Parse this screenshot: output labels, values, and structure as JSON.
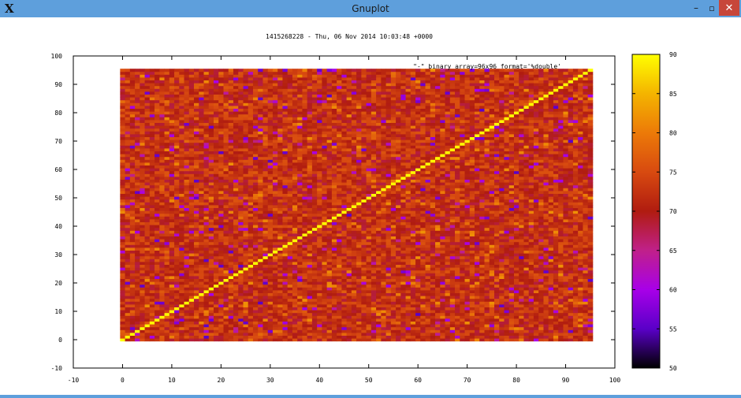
{
  "window": {
    "title": "Gnuplot",
    "logo_icon": "x-window-logo",
    "minimize_glyph": "–",
    "maximize_glyph": "▫",
    "close_glyph": "✕",
    "accent": "#5e9fdc",
    "close_color": "#c7463a"
  },
  "chart_data": {
    "type": "heatmap",
    "title": "1415268228 - Thu, 06 Nov 2014 10:03:48  +0000",
    "legend_label": "\"-\" binary array=96x96 format='%double'",
    "legend_position": "top-right",
    "grid": false,
    "matrix_size": [
      96,
      96
    ],
    "x_range": [
      0,
      95
    ],
    "y_range": [
      0,
      95
    ],
    "xlim": [
      -10,
      100
    ],
    "ylim": [
      -10,
      100
    ],
    "x_ticks": [
      -10,
      0,
      10,
      20,
      30,
      40,
      50,
      60,
      70,
      80,
      90,
      100
    ],
    "y_ticks": [
      -10,
      0,
      10,
      20,
      30,
      40,
      50,
      60,
      70,
      80,
      90,
      100
    ],
    "diagonal_value": 90,
    "background_value_range": [
      68,
      76
    ],
    "outlier_value_range": [
      55,
      66
    ],
    "colorbar": {
      "range": [
        50,
        90
      ],
      "ticks": [
        50,
        55,
        60,
        65,
        70,
        75,
        80,
        85,
        90
      ],
      "palette": [
        "#000000",
        "#5a00c8",
        "#a800e8",
        "#c0208a",
        "#b01c10",
        "#d84a10",
        "#ec7a08",
        "#f4b400",
        "#ffff00"
      ]
    }
  }
}
